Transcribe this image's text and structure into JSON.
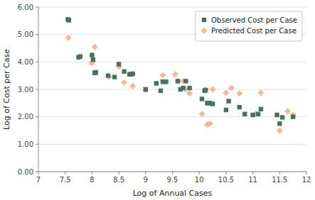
{
  "chart_data": {
    "type": "scatter",
    "xlabel": "Log of Annual Cases",
    "ylabel": "Log of Cost per Case",
    "xlim": [
      7,
      12
    ],
    "ylim": [
      0,
      6
    ],
    "xticks": [
      7,
      7.5,
      8,
      8.5,
      9,
      9.5,
      10,
      10.5,
      11,
      11.5,
      12
    ],
    "yticks": [
      {
        "value": 0.0,
        "label": "0.00"
      },
      {
        "value": 1.0,
        "label": "1.00"
      },
      {
        "value": 2.0,
        "label": "2.00"
      },
      {
        "value": 3.0,
        "label": "3.00"
      },
      {
        "value": 4.0,
        "label": "4.00"
      },
      {
        "value": 5.0,
        "label": "5.00"
      },
      {
        "value": 6.0,
        "label": "6.00"
      }
    ],
    "grid": "y",
    "legend": "upper right",
    "series": [
      {
        "name": "Predicted Cost per Case",
        "color": "#f5b08a",
        "marker": "diamond",
        "x": [
          7.56,
          7.99,
          8.05,
          8.32,
          8.5,
          8.6,
          8.76,
          9.0,
          9.32,
          9.55,
          9.6,
          9.7,
          9.75,
          9.82,
          10.05,
          10.12,
          10.15,
          10.2,
          10.25,
          10.5,
          10.6,
          10.75,
          11.05,
          11.15,
          11.5,
          11.65,
          11.75
        ],
        "values": [
          4.88,
          3.95,
          4.55,
          3.45,
          3.83,
          3.25,
          3.12,
          2.97,
          3.52,
          3.55,
          3.3,
          3.3,
          3.0,
          2.85,
          2.1,
          3.0,
          1.72,
          1.75,
          3.0,
          2.88,
          3.05,
          2.85,
          2.1,
          2.88,
          1.5,
          2.2,
          2.07
        ]
      },
      {
        "name": "Observed Cost per Case",
        "color": "#4a7160",
        "marker": "square",
        "x": [
          7.55,
          7.57,
          7.75,
          7.78,
          8.0,
          8.02,
          8.05,
          8.07,
          8.3,
          8.42,
          8.5,
          8.6,
          8.7,
          8.73,
          8.76,
          9.0,
          9.2,
          9.28,
          9.32,
          9.35,
          9.38,
          9.6,
          9.65,
          9.7,
          9.75,
          9.82,
          10.05,
          10.1,
          10.12,
          10.15,
          10.17,
          10.2,
          10.25,
          10.5,
          10.55,
          10.75,
          10.85,
          11.0,
          11.1,
          11.15,
          11.45,
          11.5,
          11.55,
          11.75
        ],
        "values": [
          5.55,
          5.52,
          4.17,
          4.2,
          4.25,
          4.08,
          3.6,
          3.62,
          3.5,
          3.45,
          3.92,
          3.65,
          3.55,
          3.55,
          3.57,
          3.0,
          3.22,
          2.95,
          3.28,
          3.28,
          3.28,
          3.3,
          3.0,
          3.05,
          3.3,
          3.05,
          2.65,
          2.95,
          2.97,
          2.5,
          2.5,
          2.5,
          2.47,
          2.25,
          2.57,
          2.35,
          2.1,
          2.07,
          2.1,
          2.28,
          2.07,
          1.75,
          1.98,
          2.0
        ]
      }
    ]
  }
}
